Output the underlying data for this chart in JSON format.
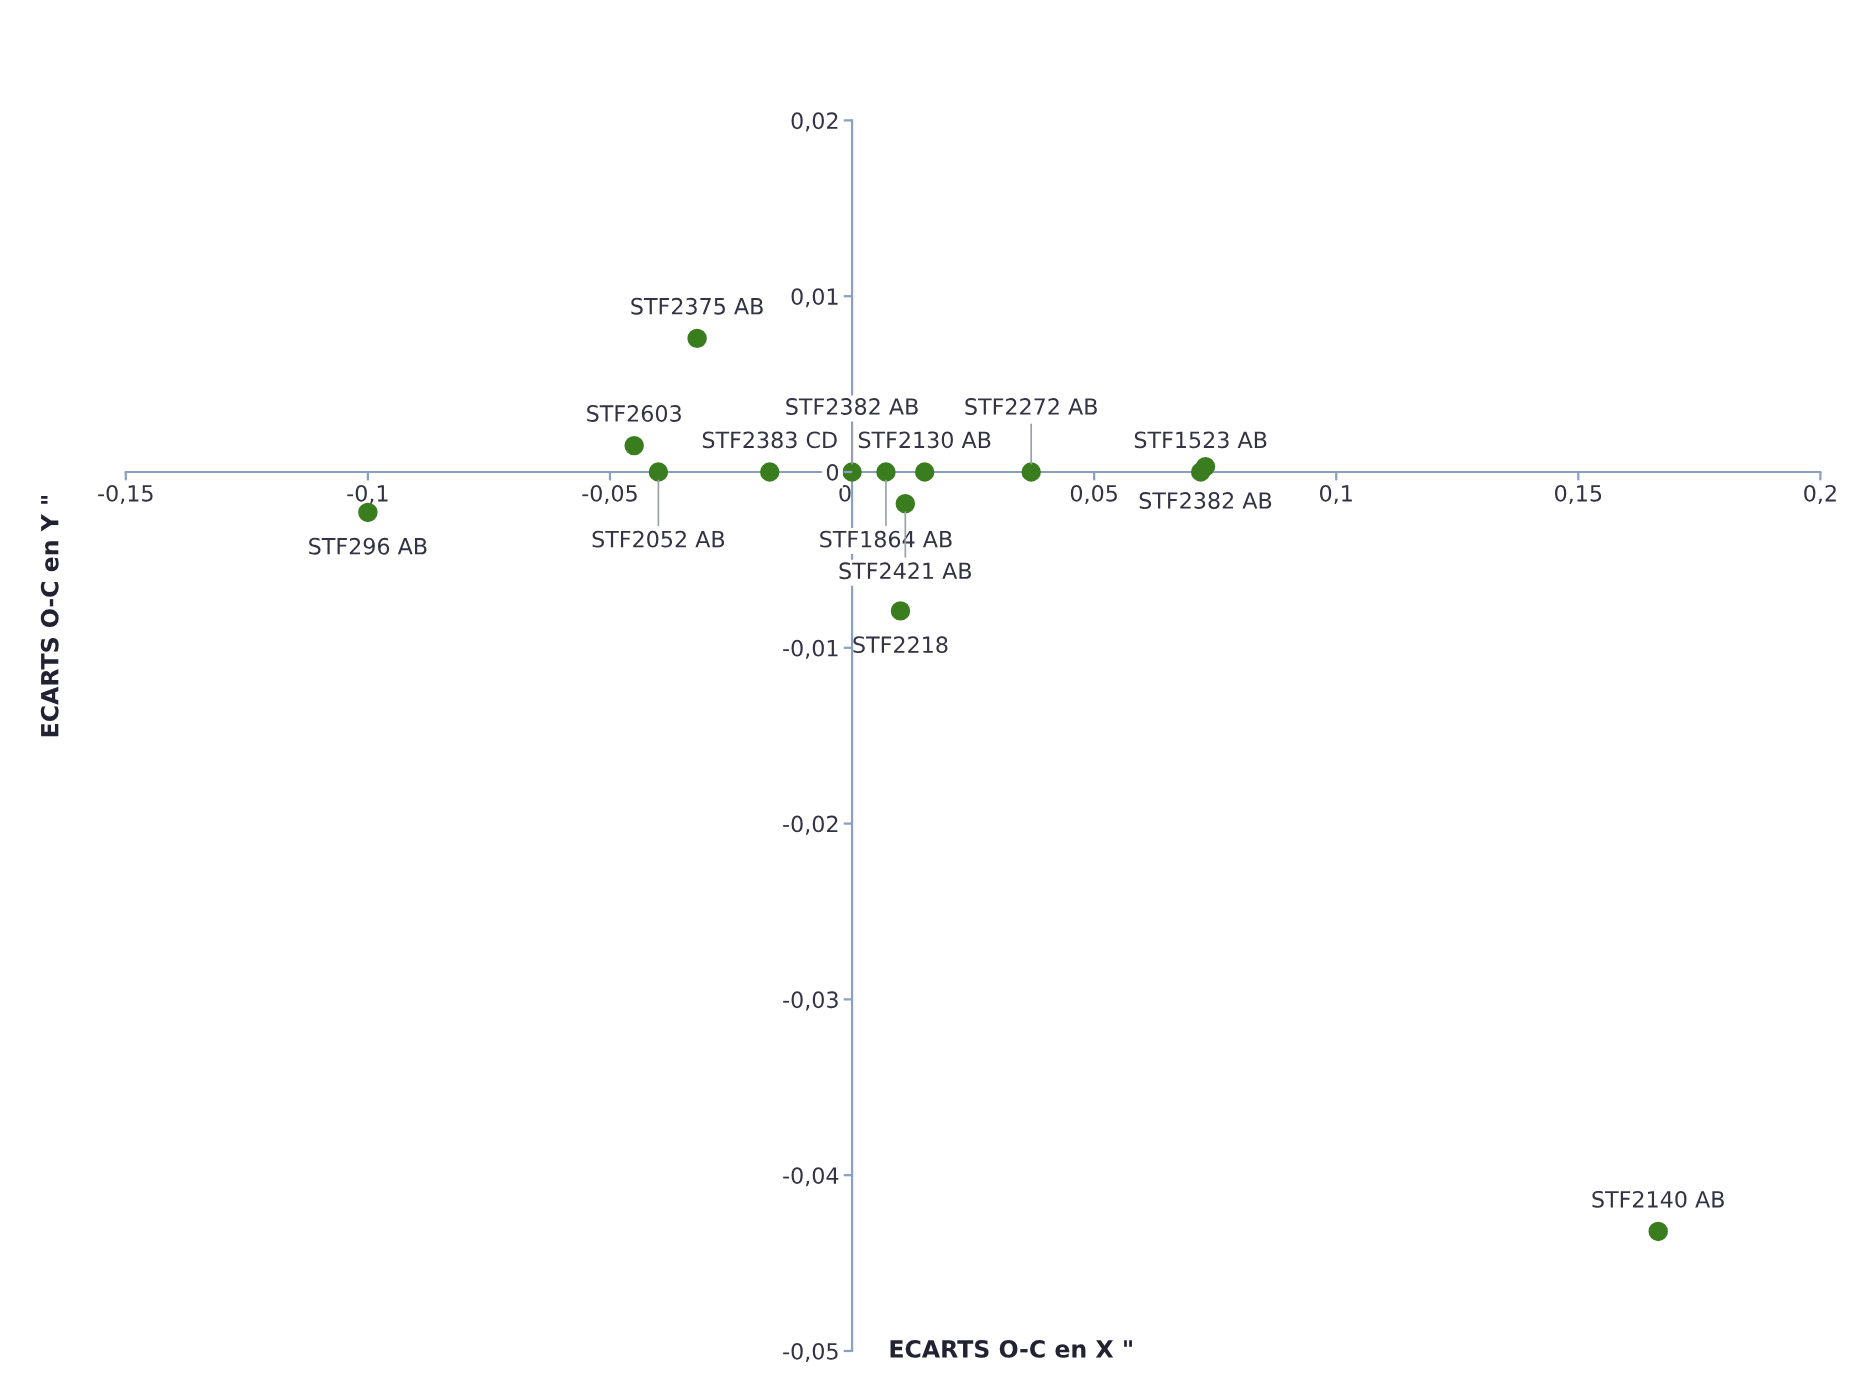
{
  "chart_data": {
    "type": "scatter",
    "xlabel": "ECARTS O-C en X \"",
    "ylabel": "ECARTS O-C en Y \"",
    "x": [
      -0.1,
      -0.045,
      -0.04,
      -0.032,
      -0.017,
      0,
      0.007,
      0.015,
      0.011,
      0.037,
      0.072,
      0.073,
      0.01,
      0.1665
    ],
    "series": [
      {
        "color": "#3a7d1e",
        "values": [
          -0.0023,
          0.0015,
          0,
          0.0076,
          0,
          0,
          0,
          0,
          -0.0018,
          0,
          0,
          0.0003,
          -0.0079,
          -0.0432
        ]
      }
    ],
    "annotations": [
      {
        "text": "STF296 AB",
        "x": -0.1,
        "y": -0.0023
      },
      {
        "text": "STF2603",
        "x": -0.045,
        "y": 0.0015
      },
      {
        "text": "STF2052 AB",
        "x": -0.04,
        "y": 0
      },
      {
        "text": "STF2375 AB",
        "x": -0.032,
        "y": 0.0076
      },
      {
        "text": "STF2383 CD",
        "x": -0.017,
        "y": 0
      },
      {
        "text": "STF2382 AB",
        "x": 0,
        "y": 0
      },
      {
        "text": "STF1864 AB",
        "x": 0.007,
        "y": 0
      },
      {
        "text": "STF2130 AB",
        "x": 0.015,
        "y": 0
      },
      {
        "text": "STF2421 AB",
        "x": 0.011,
        "y": -0.0018
      },
      {
        "text": "STF2272 AB",
        "x": 0.037,
        "y": 0
      },
      {
        "text": "STF1523 AB",
        "x": 0.072,
        "y": 0
      },
      {
        "text": "STF2382 AB",
        "x": 0.073,
        "y": 0.0003
      },
      {
        "text": "STF2218",
        "x": 0.01,
        "y": -0.0079
      },
      {
        "text": "STF2140 AB",
        "x": 0.1665,
        "y": -0.0432
      }
    ],
    "xlim": [
      -0.15,
      0.2
    ],
    "ylim": [
      -0.05,
      0.02
    ],
    "xticks": [
      {
        "value": -0.15,
        "label": "-0,15"
      },
      {
        "value": -0.1,
        "label": "-0,1"
      },
      {
        "value": -0.05,
        "label": "-0,05"
      },
      {
        "value": 0,
        "label": "0"
      },
      {
        "value": 0.05,
        "label": "0,05"
      },
      {
        "value": 0.1,
        "label": "0,1"
      },
      {
        "value": 0.15,
        "label": "0,15"
      },
      {
        "value": 0.2,
        "label": "0,2"
      }
    ],
    "yticks": [
      {
        "value": 0.02,
        "label": "0,02"
      },
      {
        "value": 0.01,
        "label": "0,01"
      },
      {
        "value": 0,
        "label": "0"
      },
      {
        "value": -0.01,
        "label": "-0,01"
      },
      {
        "value": -0.02,
        "label": "-0,02"
      },
      {
        "value": -0.03,
        "label": "-0,03"
      },
      {
        "value": -0.04,
        "label": "-0,04"
      },
      {
        "value": -0.05,
        "label": "-0,05"
      }
    ],
    "grid": false,
    "legend": false,
    "marker": "circle"
  }
}
